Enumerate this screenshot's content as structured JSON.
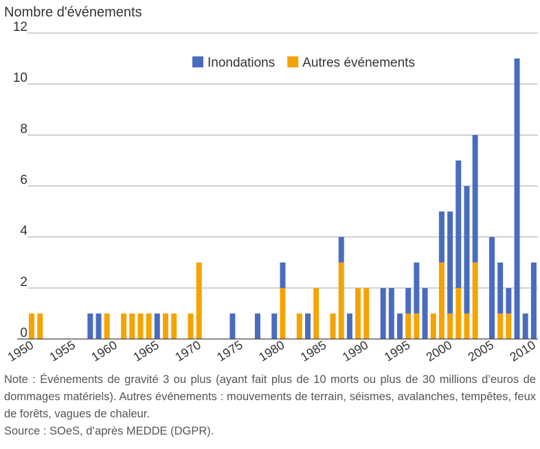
{
  "chart_data": {
    "type": "stacked_bar",
    "title": "Nombre d'événements",
    "categories": [
      "1950",
      null,
      null,
      null,
      null,
      "1955",
      null,
      null,
      null,
      null,
      "1960",
      null,
      null,
      null,
      null,
      "1965",
      null,
      null,
      null,
      null,
      "1970",
      null,
      null,
      null,
      null,
      "1975",
      null,
      null,
      null,
      null,
      "1980",
      null,
      null,
      null,
      null,
      "1985",
      null,
      null,
      null,
      null,
      "1990",
      null,
      null,
      null,
      null,
      "1995",
      null,
      null,
      null,
      null,
      "2000",
      null,
      null,
      null,
      null,
      "2005",
      null,
      null,
      null,
      null,
      "2010"
    ],
    "series": [
      {
        "name": "Inondations",
        "color": "#4a6cc0",
        "values": [
          0,
          0,
          0,
          0,
          0,
          0,
          0,
          1,
          1,
          0,
          0,
          0,
          0,
          0,
          0,
          1,
          0,
          0,
          0,
          0,
          0,
          0,
          0,
          0,
          1,
          0,
          0,
          1,
          0,
          1,
          1,
          0,
          0,
          1,
          0,
          0,
          0,
          1,
          1,
          0,
          0,
          0,
          2,
          2,
          1,
          1,
          2,
          2,
          0,
          2,
          4,
          5,
          5,
          5,
          0,
          4,
          2,
          1,
          11,
          1,
          3
        ]
      },
      {
        "name": "Autres événements",
        "color": "#f5a300",
        "values": [
          1,
          1,
          0,
          0,
          0,
          0,
          0,
          0,
          0,
          1,
          0,
          1,
          1,
          1,
          1,
          0,
          1,
          1,
          0,
          1,
          3,
          0,
          0,
          0,
          0,
          0,
          0,
          0,
          0,
          0,
          2,
          0,
          1,
          0,
          2,
          0,
          1,
          3,
          0,
          2,
          2,
          0,
          0,
          0,
          0,
          1,
          1,
          0,
          1,
          3,
          1,
          2,
          1,
          3,
          0,
          0,
          1,
          1,
          0,
          0,
          0
        ]
      }
    ],
    "ylim": [
      0,
      12
    ],
    "yticks": [
      0,
      2,
      4,
      6,
      8,
      10,
      12
    ],
    "grid": true,
    "legend": "top-right",
    "note": "Note : Événements de gravité 3 ou plus (ayant fait plus de 10 morts ou plus de 30 millions d’euros de dommages matériels). Autres événements : mouvements de terrain, séismes, avalanches, tempêtes, feux de forêts, vagues de chaleur.",
    "source": "Source : SOeS, d’après MEDDE (DGPR)."
  }
}
